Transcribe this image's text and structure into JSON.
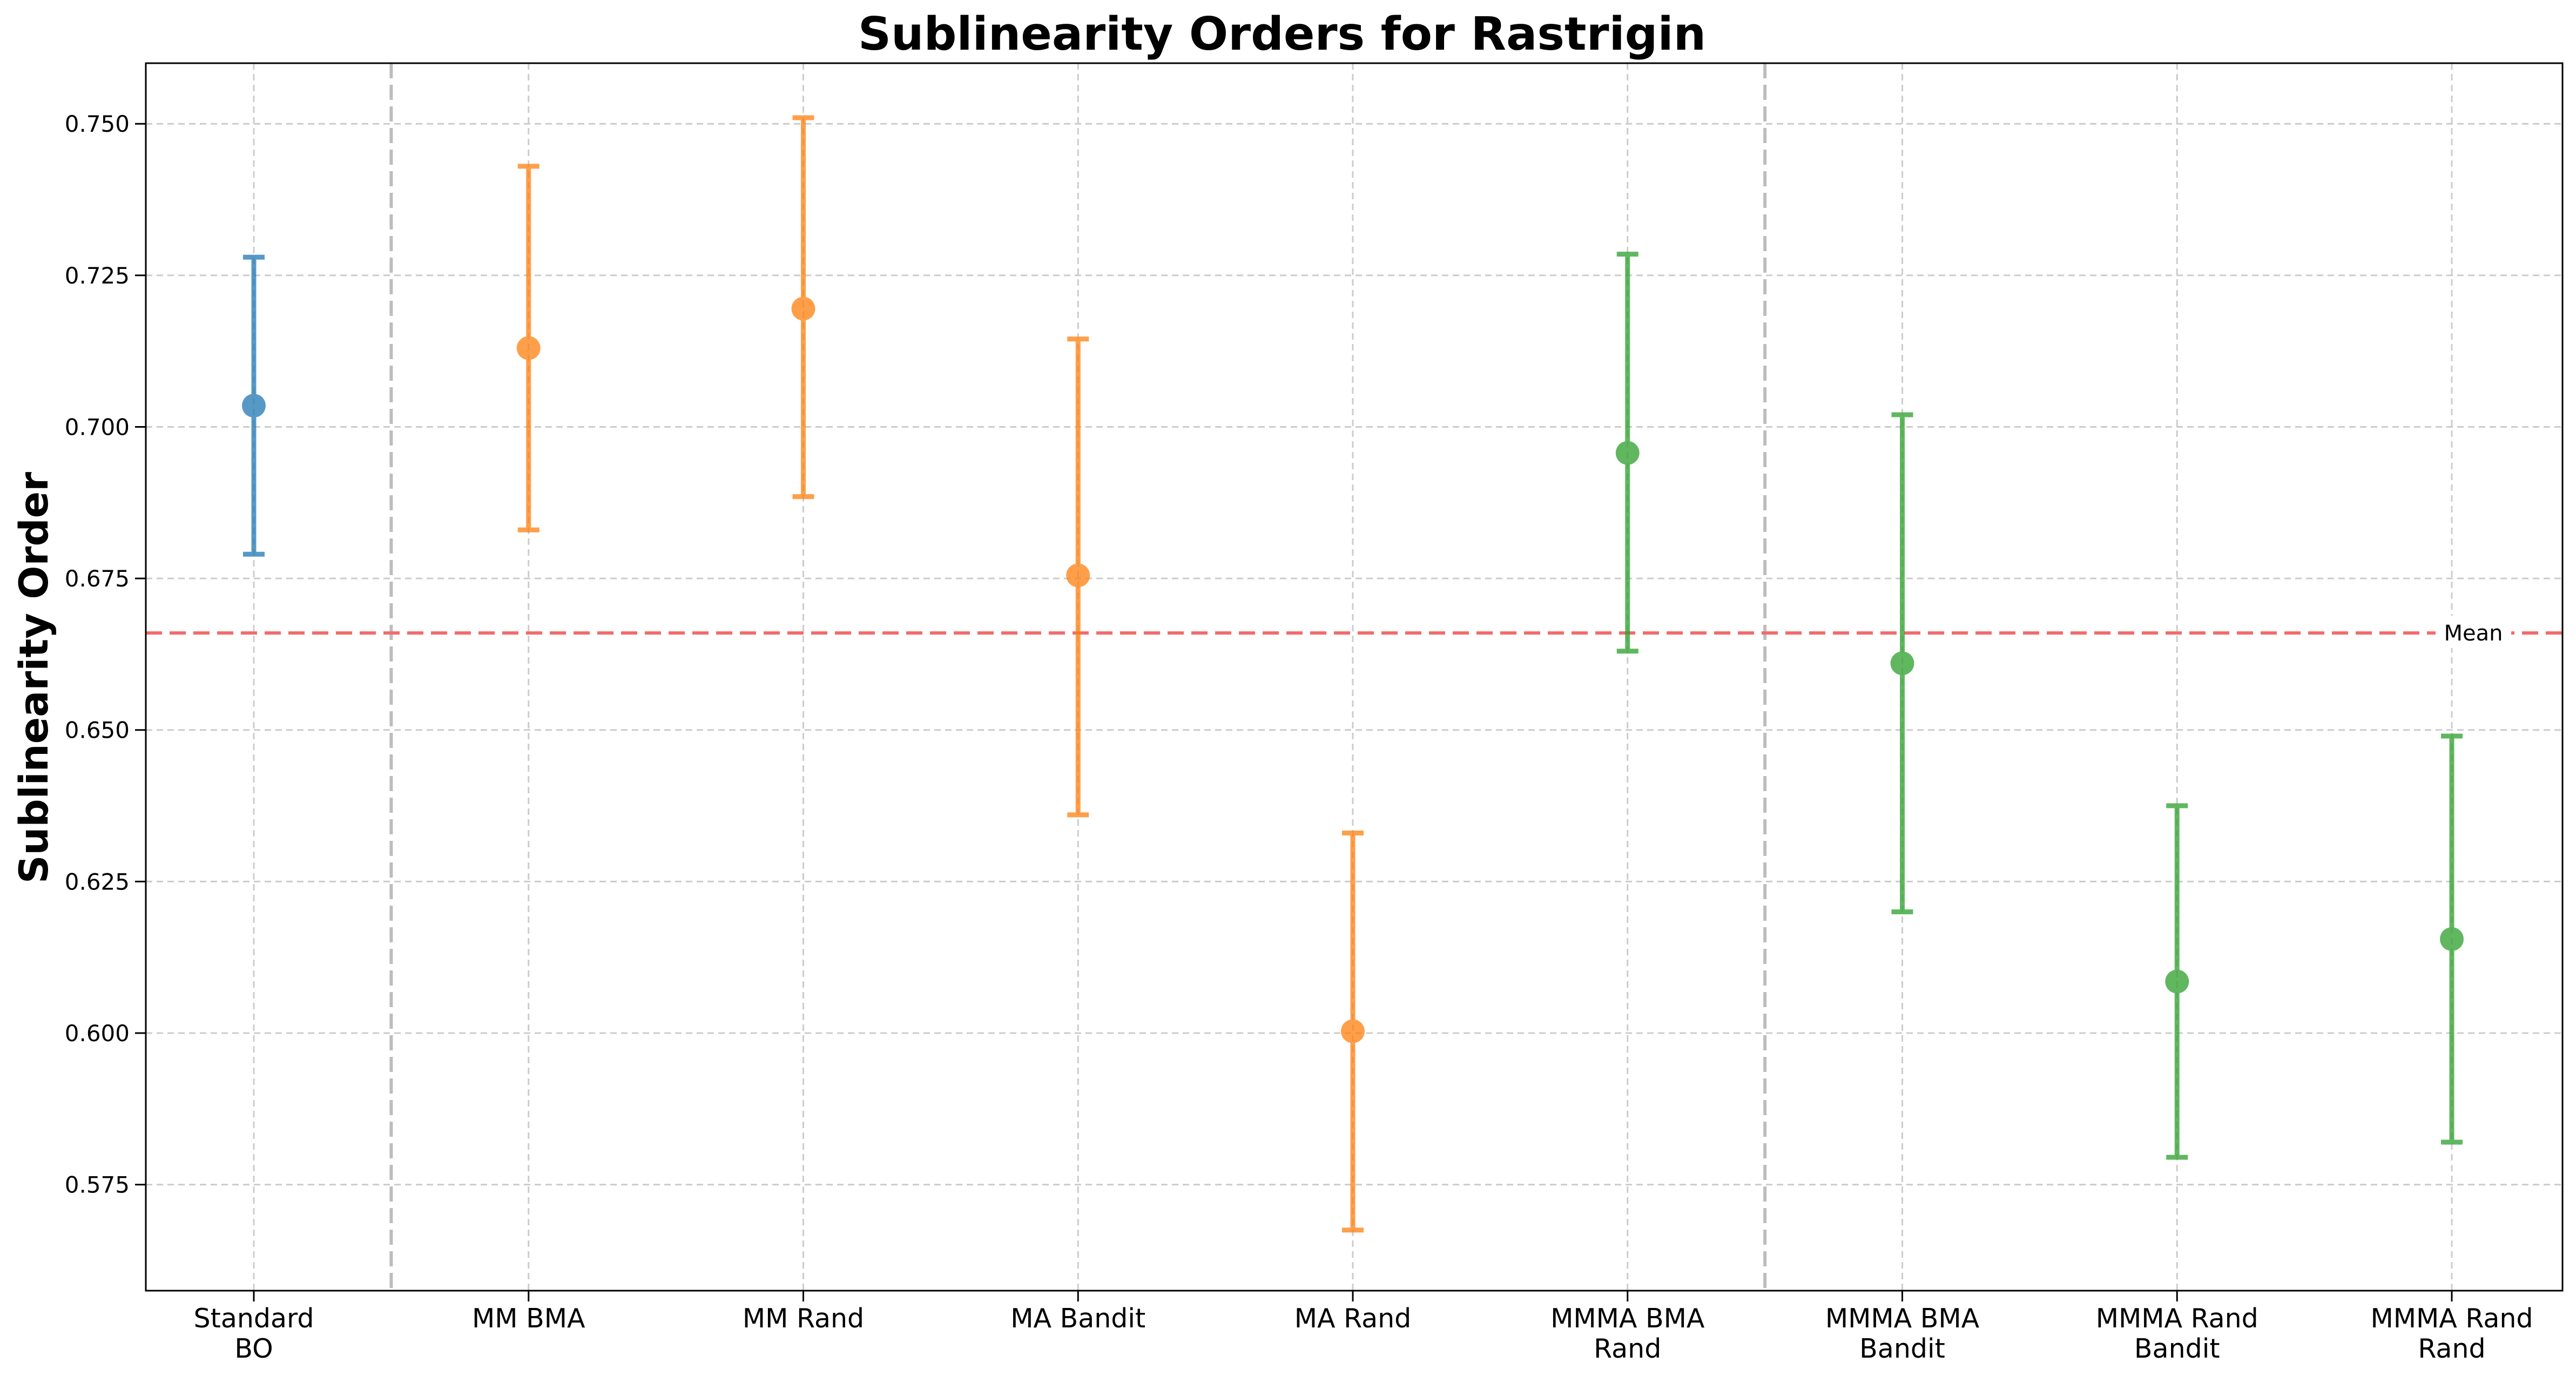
{
  "chart_data": {
    "type": "errorbar",
    "title": "Sublinearity Orders for Rastrigin",
    "xlabel": "",
    "ylabel": "Sublinearity Order",
    "ylim": [
      0.5575,
      0.76
    ],
    "yticks": [
      "0.575",
      "0.600",
      "0.625",
      "0.650",
      "0.675",
      "0.700",
      "0.725",
      "0.750"
    ],
    "ytick_values": [
      0.575,
      0.6,
      0.625,
      0.65,
      0.675,
      0.7,
      0.725,
      0.75
    ],
    "grid": true,
    "group_separators_after_index": [
      0,
      5
    ],
    "mean": {
      "value": 0.666,
      "label": "Mean",
      "color": "#f26b6b"
    },
    "categories": [
      {
        "label": [
          "Standard",
          "BO"
        ],
        "value": 0.7035,
        "lower": 0.679,
        "upper": 0.728,
        "color": "#1f77b4"
      },
      {
        "label": [
          "MM BMA"
        ],
        "value": 0.713,
        "lower": 0.683,
        "upper": 0.743,
        "color": "#ff7f0e"
      },
      {
        "label": [
          "MM Rand"
        ],
        "value": 0.7195,
        "lower": 0.6885,
        "upper": 0.751,
        "color": "#ff7f0e"
      },
      {
        "label": [
          "MA Bandit"
        ],
        "value": 0.6755,
        "lower": 0.636,
        "upper": 0.7145,
        "color": "#ff7f0e"
      },
      {
        "label": [
          "MA Rand"
        ],
        "value": 0.6003,
        "lower": 0.5675,
        "upper": 0.633,
        "color": "#ff7f0e"
      },
      {
        "label": [
          "MMMA BMA",
          "Rand"
        ],
        "value": 0.6957,
        "lower": 0.663,
        "upper": 0.7285,
        "color": "#2ca02c"
      },
      {
        "label": [
          "MMMA BMA",
          "Bandit"
        ],
        "value": 0.661,
        "lower": 0.62,
        "upper": 0.702,
        "color": "#2ca02c"
      },
      {
        "label": [
          "MMMA Rand",
          "Bandit"
        ],
        "value": 0.6085,
        "lower": 0.5795,
        "upper": 0.6375,
        "color": "#2ca02c"
      },
      {
        "label": [
          "MMMA Rand",
          "Rand"
        ],
        "value": 0.6155,
        "lower": 0.582,
        "upper": 0.649,
        "color": "#2ca02c"
      }
    ]
  }
}
